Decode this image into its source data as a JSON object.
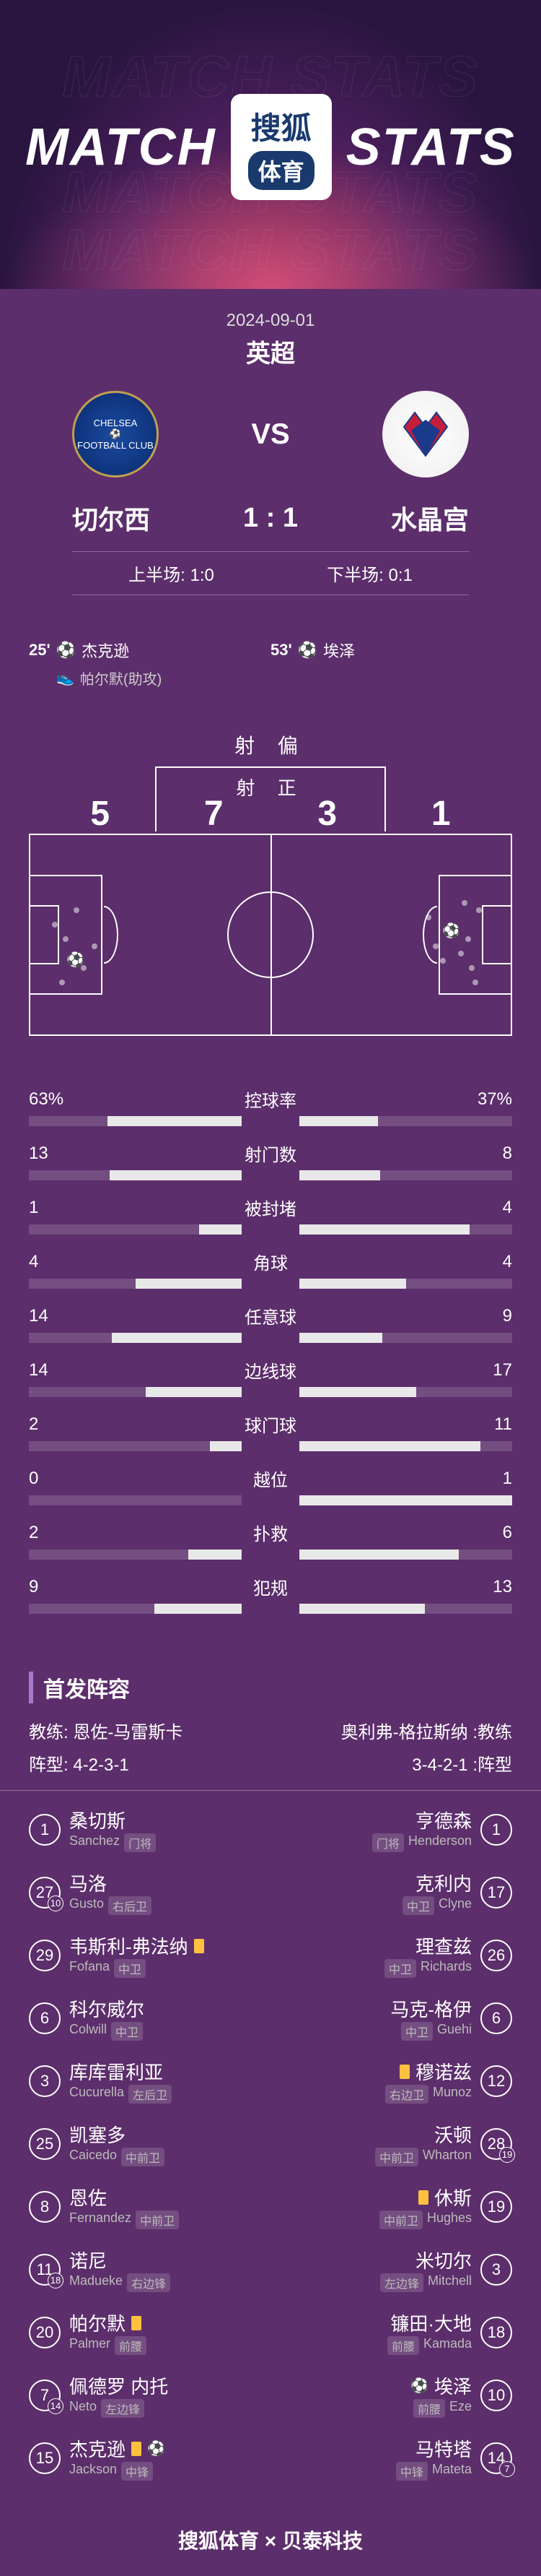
{
  "header": {
    "bg_text": "MATCH STATS",
    "title_left": "MATCH",
    "title_right": "STATS",
    "logo_top": "搜狐",
    "logo_bottom": "体育"
  },
  "match": {
    "date": "2024-09-01",
    "league": "英超",
    "home_name": "切尔西",
    "away_name": "水晶宫",
    "score": "1 : 1",
    "vs": "VS",
    "first_half": "上半场: 1:0",
    "second_half": "下半场: 0:1"
  },
  "scorers": {
    "home": [
      {
        "minute": "25'",
        "name": "杰克逊",
        "assist": "帕尔默(助攻)"
      }
    ],
    "away": [
      {
        "minute": "53'",
        "name": "埃泽"
      }
    ]
  },
  "shots": {
    "off_label": "射 偏",
    "on_label": "射 正",
    "home_off": "5",
    "home_on": "7",
    "away_on": "3",
    "away_off": "1"
  },
  "stats": [
    {
      "name": "控球率",
      "home": "63%",
      "away": "37%",
      "home_pct": 63,
      "away_pct": 37
    },
    {
      "name": "射门数",
      "home": "13",
      "away": "8",
      "home_pct": 62,
      "away_pct": 38
    },
    {
      "name": "被封堵",
      "home": "1",
      "away": "4",
      "home_pct": 20,
      "away_pct": 80
    },
    {
      "name": "角球",
      "home": "4",
      "away": "4",
      "home_pct": 50,
      "away_pct": 50
    },
    {
      "name": "任意球",
      "home": "14",
      "away": "9",
      "home_pct": 61,
      "away_pct": 39
    },
    {
      "name": "边线球",
      "home": "14",
      "away": "17",
      "home_pct": 45,
      "away_pct": 55
    },
    {
      "name": "球门球",
      "home": "2",
      "away": "11",
      "home_pct": 15,
      "away_pct": 85
    },
    {
      "name": "越位",
      "home": "0",
      "away": "1",
      "home_pct": 0,
      "away_pct": 100
    },
    {
      "name": "扑救",
      "home": "2",
      "away": "6",
      "home_pct": 25,
      "away_pct": 75
    },
    {
      "name": "犯规",
      "home": "9",
      "away": "13",
      "home_pct": 41,
      "away_pct": 59
    }
  ],
  "lineup": {
    "title": "首发阵容",
    "home_coach_label": "教练:",
    "home_coach": "恩佐-马雷斯卡",
    "away_coach_label": ":教练",
    "away_coach": "奥利弗-格拉斯纳",
    "home_formation_label": "阵型:",
    "home_formation": "4-2-3-1",
    "away_formation_label": ":阵型",
    "away_formation": "3-4-2-1"
  },
  "home_players": [
    {
      "num": "1",
      "name": "桑切斯",
      "en": "Sanchez",
      "pos": "门将"
    },
    {
      "num": "27",
      "sub": "10",
      "name": "马洛",
      "en": "Gusto",
      "pos": "右后卫"
    },
    {
      "num": "29",
      "name": "韦斯利-弗法纳",
      "en": "Fofana",
      "pos": "中卫",
      "yellow": true
    },
    {
      "num": "6",
      "name": "科尔威尔",
      "en": "Colwill",
      "pos": "中卫"
    },
    {
      "num": "3",
      "name": "库库雷利亚",
      "en": "Cucurella",
      "pos": "左后卫"
    },
    {
      "num": "25",
      "name": "凯塞多",
      "en": "Caicedo",
      "pos": "中前卫"
    },
    {
      "num": "8",
      "name": "恩佐",
      "en": "Fernandez",
      "pos": "中前卫"
    },
    {
      "num": "11",
      "sub": "18",
      "name": "诺尼",
      "en": "Madueke",
      "pos": "右边锋"
    },
    {
      "num": "20",
      "name": "帕尔默",
      "en": "Palmer",
      "pos": "前腰",
      "yellow": true
    },
    {
      "num": "7",
      "sub": "14",
      "name": "佩德罗 内托",
      "en": "Neto",
      "pos": "左边锋"
    },
    {
      "num": "15",
      "name": "杰克逊",
      "en": "Jackson",
      "pos": "中锋",
      "yellow": true,
      "goal": true
    }
  ],
  "away_players": [
    {
      "num": "1",
      "name": "亨德森",
      "en": "Henderson",
      "pos": "门将"
    },
    {
      "num": "17",
      "name": "克利内",
      "en": "Clyne",
      "pos": "中卫"
    },
    {
      "num": "26",
      "name": "理查兹",
      "en": "Richards",
      "pos": "中卫"
    },
    {
      "num": "6",
      "name": "马克-格伊",
      "en": "Guehi",
      "pos": "中卫"
    },
    {
      "num": "12",
      "name": "穆诺兹",
      "en": "Munoz",
      "pos": "右边卫",
      "yellow": true
    },
    {
      "num": "28",
      "sub": "19",
      "name": "沃顿",
      "en": "Wharton",
      "pos": "中前卫"
    },
    {
      "num": "19",
      "name": "休斯",
      "en": "Hughes",
      "pos": "中前卫",
      "yellow": true
    },
    {
      "num": "3",
      "name": "米切尔",
      "en": "Mitchell",
      "pos": "左边锋"
    },
    {
      "num": "18",
      "name": "镰田·大地",
      "en": "Kamada",
      "pos": "前腰"
    },
    {
      "num": "10",
      "name": "埃泽",
      "en": "Eze",
      "pos": "前腰",
      "goal": true
    },
    {
      "num": "14",
      "sub": "7",
      "name": "马特塔",
      "en": "Mateta",
      "pos": "中锋"
    }
  ],
  "footer": "搜狐体育 × 贝泰科技",
  "colors": {
    "bg": "#5c2e6b",
    "bar_fill": "#e8e8e8",
    "bar_bg": "rgba(255,255,255,0.15)",
    "accent": "#a878c8",
    "yellow": "#ffc040"
  }
}
